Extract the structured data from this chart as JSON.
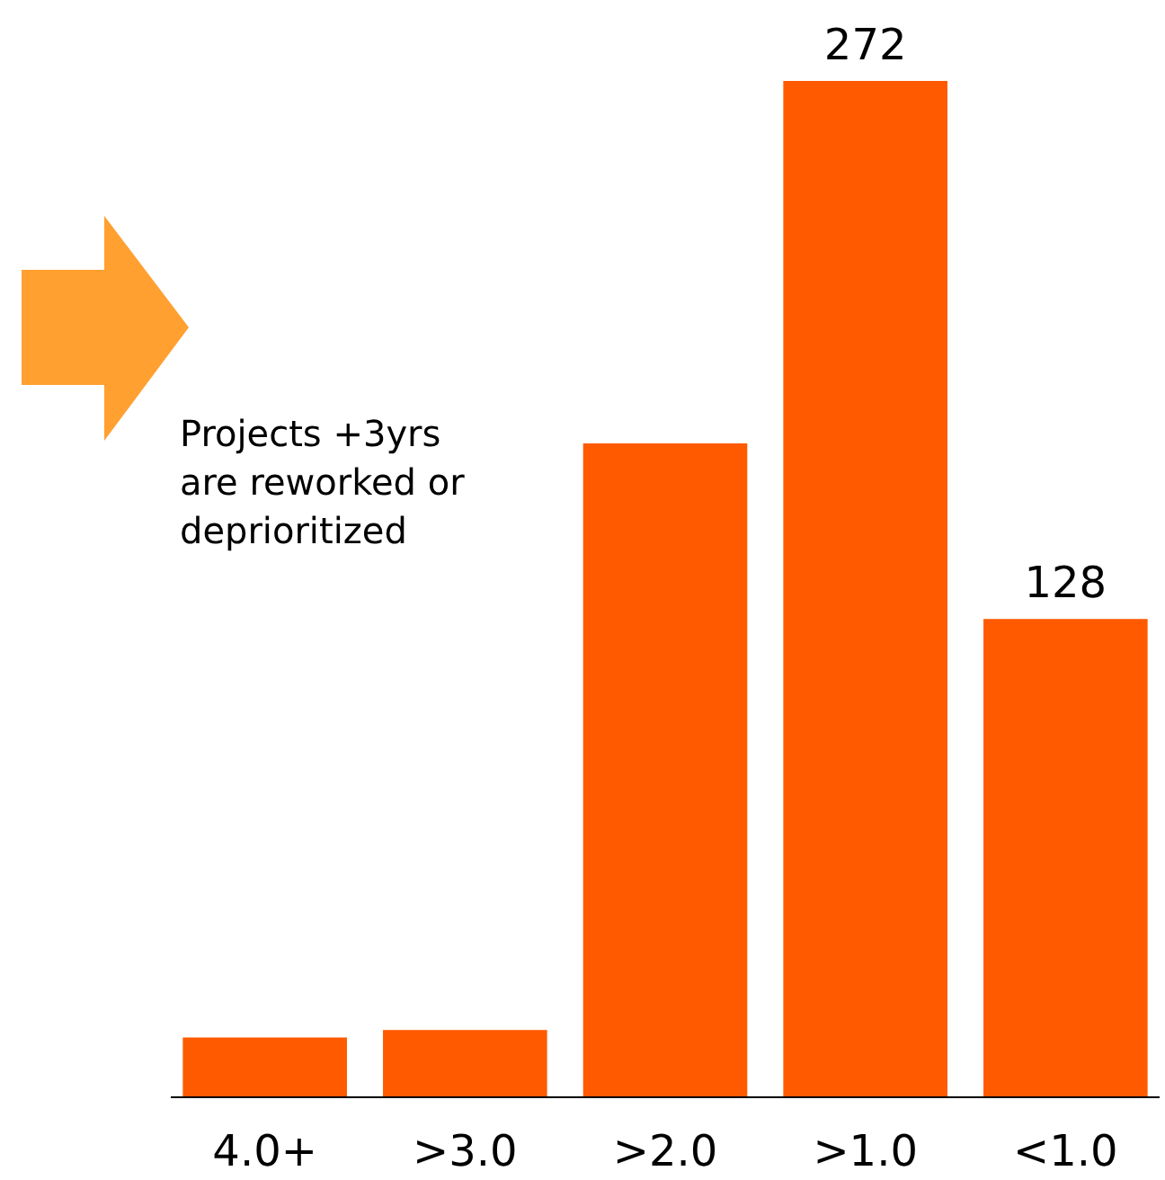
{
  "chart_data": {
    "type": "bar",
    "categories": [
      "4.0+",
      ">3.0",
      ">2.0",
      ">1.0",
      "<1.0"
    ],
    "values": [
      16,
      18,
      175,
      272,
      128
    ],
    "value_labels": [
      null,
      null,
      null,
      "272",
      "128"
    ],
    "color": "#ff5a00",
    "annotations": [
      "Projects +3yrs are reworked or deprioritized"
    ]
  }
}
